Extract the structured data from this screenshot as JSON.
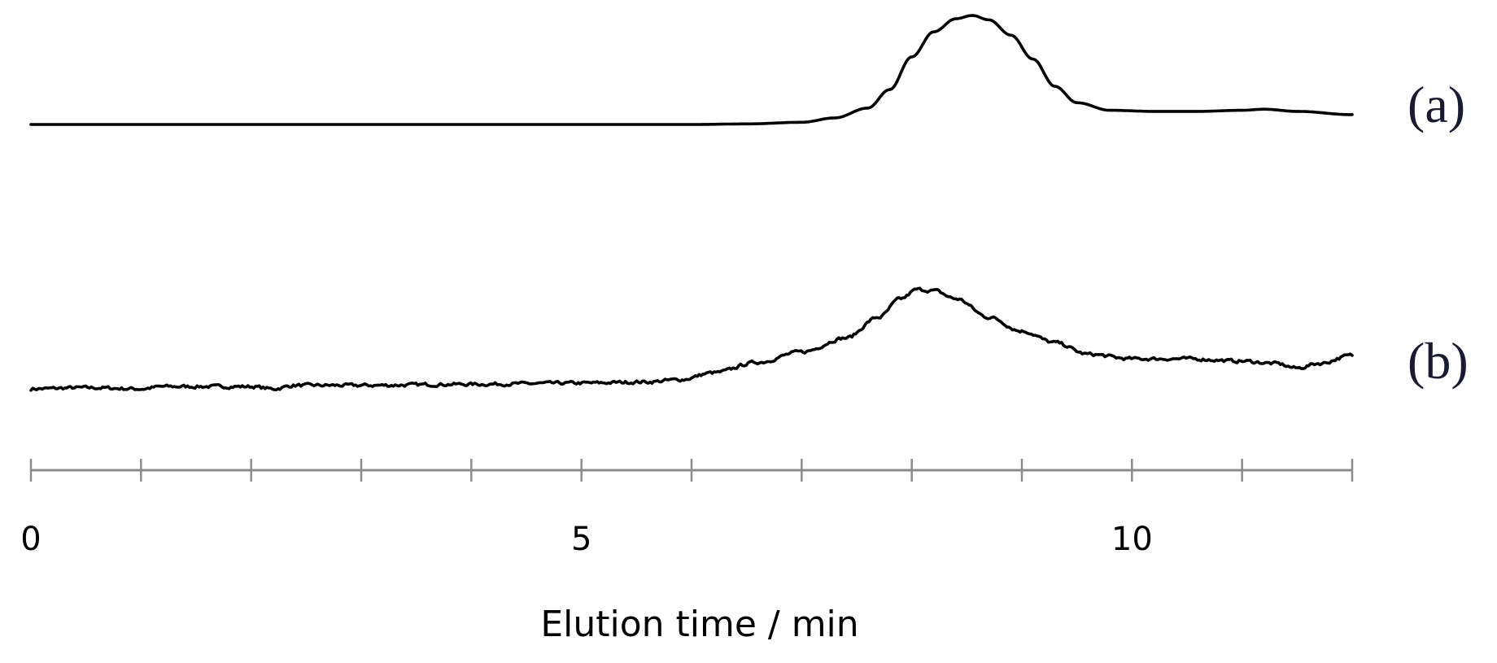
{
  "chart_data": {
    "type": "line",
    "title": "",
    "xlabel": "Elution time / min",
    "ylabel": "",
    "xlim": [
      0,
      12
    ],
    "x_ticks": [
      0,
      1,
      2,
      3,
      4,
      5,
      6,
      7,
      8,
      9,
      10,
      11,
      12
    ],
    "x_tick_labels": [
      {
        "value": 0,
        "label": "0"
      },
      {
        "value": 5,
        "label": "5"
      },
      {
        "value": 10,
        "label": "10"
      }
    ],
    "grid": false,
    "legend": "none",
    "line_color": "#000000",
    "series": [
      {
        "name": "(a)",
        "noise": 0,
        "points": [
          [
            0,
            0.0
          ],
          [
            1,
            0.0
          ],
          [
            2,
            0.0
          ],
          [
            3,
            0.0
          ],
          [
            4,
            0.0
          ],
          [
            5,
            0.0
          ],
          [
            6,
            0.0
          ],
          [
            6.5,
            0.005
          ],
          [
            7,
            0.02
          ],
          [
            7.3,
            0.06
          ],
          [
            7.6,
            0.15
          ],
          [
            7.8,
            0.32
          ],
          [
            8.0,
            0.62
          ],
          [
            8.2,
            0.85
          ],
          [
            8.4,
            0.97
          ],
          [
            8.55,
            1.0
          ],
          [
            8.7,
            0.96
          ],
          [
            8.9,
            0.82
          ],
          [
            9.1,
            0.6
          ],
          [
            9.3,
            0.35
          ],
          [
            9.5,
            0.2
          ],
          [
            9.8,
            0.13
          ],
          [
            10.2,
            0.12
          ],
          [
            10.6,
            0.12
          ],
          [
            11.0,
            0.13
          ],
          [
            11.2,
            0.14
          ],
          [
            11.5,
            0.12
          ],
          [
            12.0,
            0.09
          ]
        ]
      },
      {
        "name": "(b)",
        "noise": 0.025,
        "points": [
          [
            0,
            0.0
          ],
          [
            0.5,
            0.01
          ],
          [
            1.0,
            0.0
          ],
          [
            1.2,
            0.02
          ],
          [
            2.0,
            0.02
          ],
          [
            2.2,
            0.0
          ],
          [
            2.4,
            0.03
          ],
          [
            3.0,
            0.03
          ],
          [
            4.0,
            0.04
          ],
          [
            5.0,
            0.05
          ],
          [
            5.6,
            0.06
          ],
          [
            5.9,
            0.08
          ],
          [
            6.2,
            0.14
          ],
          [
            6.6,
            0.23
          ],
          [
            7.0,
            0.32
          ],
          [
            7.4,
            0.44
          ],
          [
            7.7,
            0.62
          ],
          [
            7.9,
            0.78
          ],
          [
            8.05,
            0.86
          ],
          [
            8.2,
            0.85
          ],
          [
            8.4,
            0.78
          ],
          [
            8.7,
            0.62
          ],
          [
            9.0,
            0.5
          ],
          [
            9.3,
            0.4
          ],
          [
            9.6,
            0.3
          ],
          [
            10.0,
            0.26
          ],
          [
            10.5,
            0.26
          ],
          [
            11.0,
            0.24
          ],
          [
            11.3,
            0.22
          ],
          [
            11.5,
            0.18
          ],
          [
            11.7,
            0.22
          ],
          [
            12.0,
            0.29
          ]
        ]
      }
    ]
  }
}
